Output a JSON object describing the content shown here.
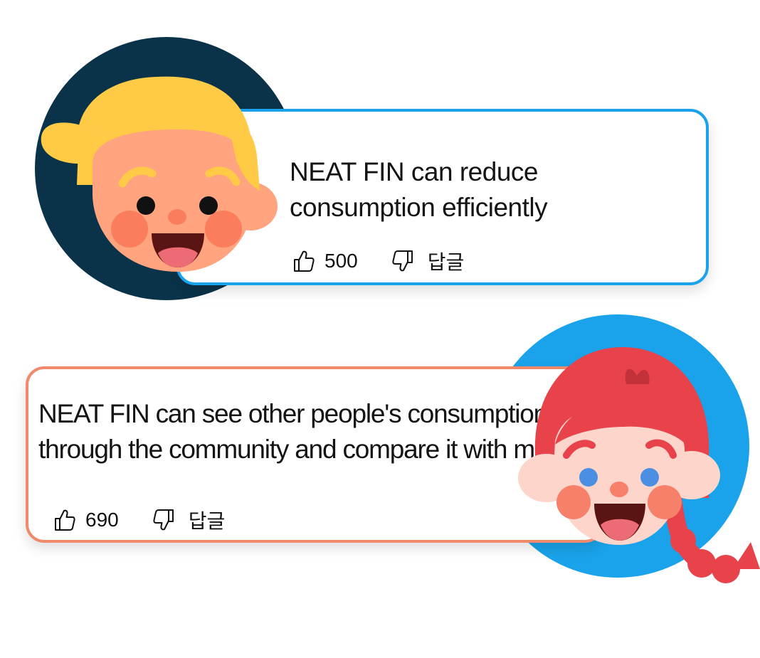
{
  "comments": [
    {
      "text": "NEAT FIN can reduce consumption efficiently",
      "likes": "500",
      "reply_label": "답글",
      "border_color": "#1aa3ea",
      "avatar": "blonde-boy-avatar"
    },
    {
      "text": "NEAT FIN can see other people's consumption through the community and compare it with me",
      "likes": "690",
      "reply_label": "답글",
      "border_color": "#f08a6b",
      "avatar": "red-haired-girl-avatar"
    }
  ],
  "icons": {
    "like": "thumbs-up-icon",
    "dislike": "thumbs-down-icon"
  },
  "colors": {
    "avatar_bg_dark": "#0a3349",
    "avatar_bg_blue": "#1aa3ea",
    "blonde_hair": "#ffcb47",
    "red_hair": "#e8424a",
    "skin_boy": "#ffa47f",
    "skin_girl": "#fdd5cb"
  }
}
